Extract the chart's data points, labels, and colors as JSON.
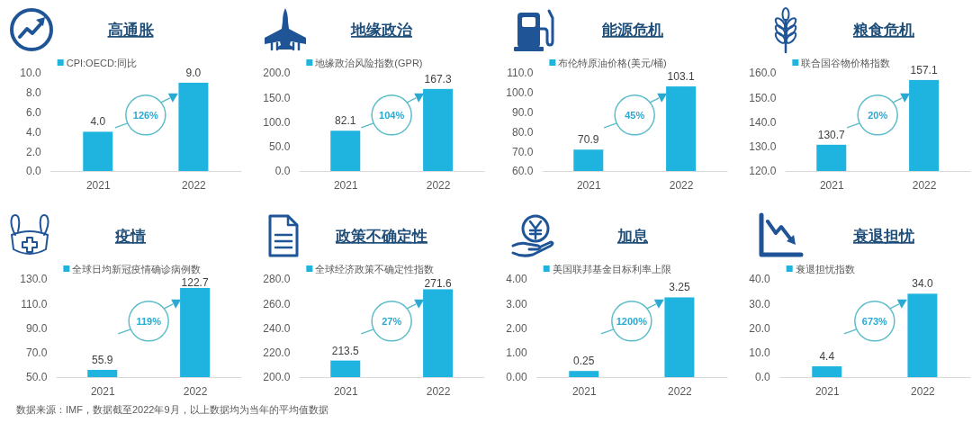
{
  "chart_data": [
    {
      "type": "bar",
      "title": "高通胀",
      "categories": [
        "2021",
        "2022"
      ],
      "series": [
        {
          "name": "CPI:OECD:同比",
          "color": "#1fb4e0",
          "values": [
            4.0,
            9.0
          ],
          "value_labels": [
            "4.0",
            "9.0"
          ]
        }
      ],
      "ylim": [
        0,
        10
      ],
      "yticks": [
        {
          "value": 0,
          "label": "0.0"
        },
        {
          "value": 2,
          "label": "2.0"
        },
        {
          "value": 4,
          "label": "4.0"
        },
        {
          "value": 6,
          "label": "6.0"
        },
        {
          "value": 8,
          "label": "8.0"
        },
        {
          "value": 10,
          "label": "10.0"
        }
      ],
      "legend": "top left",
      "annotations": [
        "126%"
      ]
    },
    {
      "type": "bar",
      "title": "地缘政治",
      "categories": [
        "2021",
        "2022"
      ],
      "series": [
        {
          "name": "地缘政治风险指数(GPR)",
          "color": "#1fb4e0",
          "values": [
            82.1,
            167.3
          ],
          "value_labels": [
            "82.1",
            "167.3"
          ]
        }
      ],
      "ylim": [
        0,
        200
      ],
      "yticks": [
        {
          "value": 0,
          "label": "0.0"
        },
        {
          "value": 50,
          "label": "50.0"
        },
        {
          "value": 100,
          "label": "100.0"
        },
        {
          "value": 150,
          "label": "150.0"
        },
        {
          "value": 200,
          "label": "200.0"
        }
      ],
      "legend": "top left",
      "annotations": [
        "104%"
      ]
    },
    {
      "type": "bar",
      "title": "能源危机",
      "categories": [
        "2021",
        "2022"
      ],
      "series": [
        {
          "name": "布伦特原油价格(美元/桶)",
          "color": "#1fb4e0",
          "values": [
            70.9,
            103.1
          ],
          "value_labels": [
            "70.9",
            "103.1"
          ]
        }
      ],
      "ylim": [
        60,
        110
      ],
      "yticks": [
        {
          "value": 60,
          "label": "60.0"
        },
        {
          "value": 70,
          "label": "70.0"
        },
        {
          "value": 80,
          "label": "80.0"
        },
        {
          "value": 90,
          "label": "90.0"
        },
        {
          "value": 100,
          "label": "100.0"
        },
        {
          "value": 110,
          "label": "110.0"
        }
      ],
      "legend": "top left",
      "annotations": [
        "45%"
      ]
    },
    {
      "type": "bar",
      "title": "粮食危机",
      "categories": [
        "2021",
        "2022"
      ],
      "series": [
        {
          "name": "联合国谷物价格指数",
          "color": "#1fb4e0",
          "values": [
            130.7,
            157.1
          ],
          "value_labels": [
            "130.7",
            "157.1"
          ]
        }
      ],
      "ylim": [
        120,
        160
      ],
      "yticks": [
        {
          "value": 120,
          "label": "120.0"
        },
        {
          "value": 130,
          "label": "130.0"
        },
        {
          "value": 140,
          "label": "140.0"
        },
        {
          "value": 150,
          "label": "150.0"
        },
        {
          "value": 160,
          "label": "160.0"
        }
      ],
      "legend": "top left",
      "annotations": [
        "20%"
      ]
    },
    {
      "type": "bar",
      "title": "疫情",
      "categories": [
        "2021",
        "2022"
      ],
      "series": [
        {
          "name": "全球日均新冠疫情确诊病例数",
          "color": "#1fb4e0",
          "values": [
            55.9,
            122.7
          ],
          "value_labels": [
            "55.9",
            "122.7"
          ]
        }
      ],
      "ylim": [
        50,
        130
      ],
      "yticks": [
        {
          "value": 50,
          "label": "50.0"
        },
        {
          "value": 70,
          "label": "70.0"
        },
        {
          "value": 90,
          "label": "90.0"
        },
        {
          "value": 110,
          "label": "110.0"
        },
        {
          "value": 130,
          "label": "130.0"
        }
      ],
      "legend": "top left",
      "annotations": [
        "119%",
        "数据来源：IMF，数据截至2022年9月，以上数据均为当年的平均值数据"
      ]
    },
    {
      "type": "bar",
      "title": "政策不确定性",
      "categories": [
        "2021",
        "2022"
      ],
      "series": [
        {
          "name": "全球经济政策不确定性指数",
          "color": "#1fb4e0",
          "values": [
            213.5,
            271.6
          ],
          "value_labels": [
            "213.5",
            "271.6"
          ]
        }
      ],
      "ylim": [
        200,
        280
      ],
      "yticks": [
        {
          "value": 200,
          "label": "200.0"
        },
        {
          "value": 220,
          "label": "220.0"
        },
        {
          "value": 240,
          "label": "240.0"
        },
        {
          "value": 260,
          "label": "260.0"
        },
        {
          "value": 280,
          "label": "280.0"
        }
      ],
      "legend": "top left",
      "annotations": [
        "27%"
      ]
    },
    {
      "type": "bar",
      "title": "加息",
      "categories": [
        "2021",
        "2022"
      ],
      "series": [
        {
          "name": "美国联邦基金目标利率上限",
          "color": "#1fb4e0",
          "values": [
            0.25,
            3.25
          ],
          "value_labels": [
            "0.25",
            "3.25"
          ]
        }
      ],
      "ylim": [
        0,
        4
      ],
      "yticks": [
        {
          "value": 0,
          "label": "0.00"
        },
        {
          "value": 1,
          "label": "1.00"
        },
        {
          "value": 2,
          "label": "2.00"
        },
        {
          "value": 3,
          "label": "3.00"
        },
        {
          "value": 4,
          "label": "4.00"
        }
      ],
      "legend": "top left",
      "annotations": [
        "1200%"
      ]
    },
    {
      "type": "bar",
      "title": "衰退担忧",
      "categories": [
        "2021",
        "2022"
      ],
      "series": [
        {
          "name": "衰退担忧指数",
          "color": "#1fb4e0",
          "values": [
            4.4,
            34.0
          ],
          "value_labels": [
            "4.4",
            "34.0"
          ]
        }
      ],
      "ylim": [
        0,
        40
      ],
      "yticks": [
        {
          "value": 0,
          "label": "0.0"
        },
        {
          "value": 10,
          "label": "10.0"
        },
        {
          "value": 20,
          "label": "20.0"
        },
        {
          "value": 30,
          "label": "30.0"
        },
        {
          "value": 40,
          "label": "40.0"
        }
      ],
      "legend": "top left",
      "annotations": [
        "673%"
      ]
    }
  ]
}
